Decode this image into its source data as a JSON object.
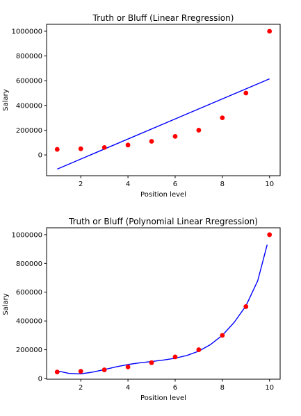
{
  "chart_data": [
    {
      "type": "scatter",
      "title": "Truth or Bluff (Linear Rregression)",
      "xlabel": "Position level",
      "ylabel": "Salary",
      "xlim": [
        0.55,
        10.45
      ],
      "ylim": [
        -168000,
        1056000
      ],
      "xticks": [
        2,
        4,
        6,
        8,
        10
      ],
      "yticks": [
        0,
        200000,
        400000,
        600000,
        800000,
        1000000
      ],
      "grid": false,
      "series": [
        {
          "kind": "scatter",
          "color": "#ff0000",
          "x": [
            1,
            2,
            3,
            4,
            5,
            6,
            7,
            8,
            9,
            10
          ],
          "y": [
            45000,
            50000,
            60000,
            80000,
            110000,
            150000,
            200000,
            300000,
            500000,
            1000000
          ]
        },
        {
          "kind": "line",
          "color": "#0000ff",
          "x": [
            1,
            10
          ],
          "y": [
            -114455,
            615000
          ]
        }
      ]
    },
    {
      "type": "scatter",
      "title": "Truth or Bluff (Polynomial Linear Rregression)",
      "xlabel": "Position level",
      "ylabel": "Salary",
      "xlim": [
        0.55,
        10.45
      ],
      "ylim": [
        -5000,
        1048000
      ],
      "xticks": [
        2,
        4,
        6,
        8,
        10
      ],
      "yticks": [
        0,
        200000,
        400000,
        600000,
        800000,
        1000000
      ],
      "grid": false,
      "series": [
        {
          "kind": "scatter",
          "color": "#ff0000",
          "x": [
            1,
            2,
            3,
            4,
            5,
            6,
            7,
            8,
            9,
            10
          ],
          "y": [
            45000,
            50000,
            60000,
            80000,
            110000,
            150000,
            200000,
            300000,
            500000,
            1000000
          ]
        },
        {
          "kind": "line",
          "color": "#0000ff",
          "x": [
            1,
            1.5,
            2,
            2.5,
            3,
            3.5,
            4,
            4.5,
            5,
            5.5,
            6,
            6.5,
            7,
            7.5,
            8,
            8.5,
            9,
            9.5,
            9.9
          ],
          "y": [
            53000,
            35000,
            32000,
            44000,
            62000,
            81000,
            97000,
            109000,
            118000,
            128000,
            141000,
            160000,
            190000,
            236000,
            300000,
            390000,
            505000,
            680000,
            930000
          ]
        }
      ]
    }
  ]
}
